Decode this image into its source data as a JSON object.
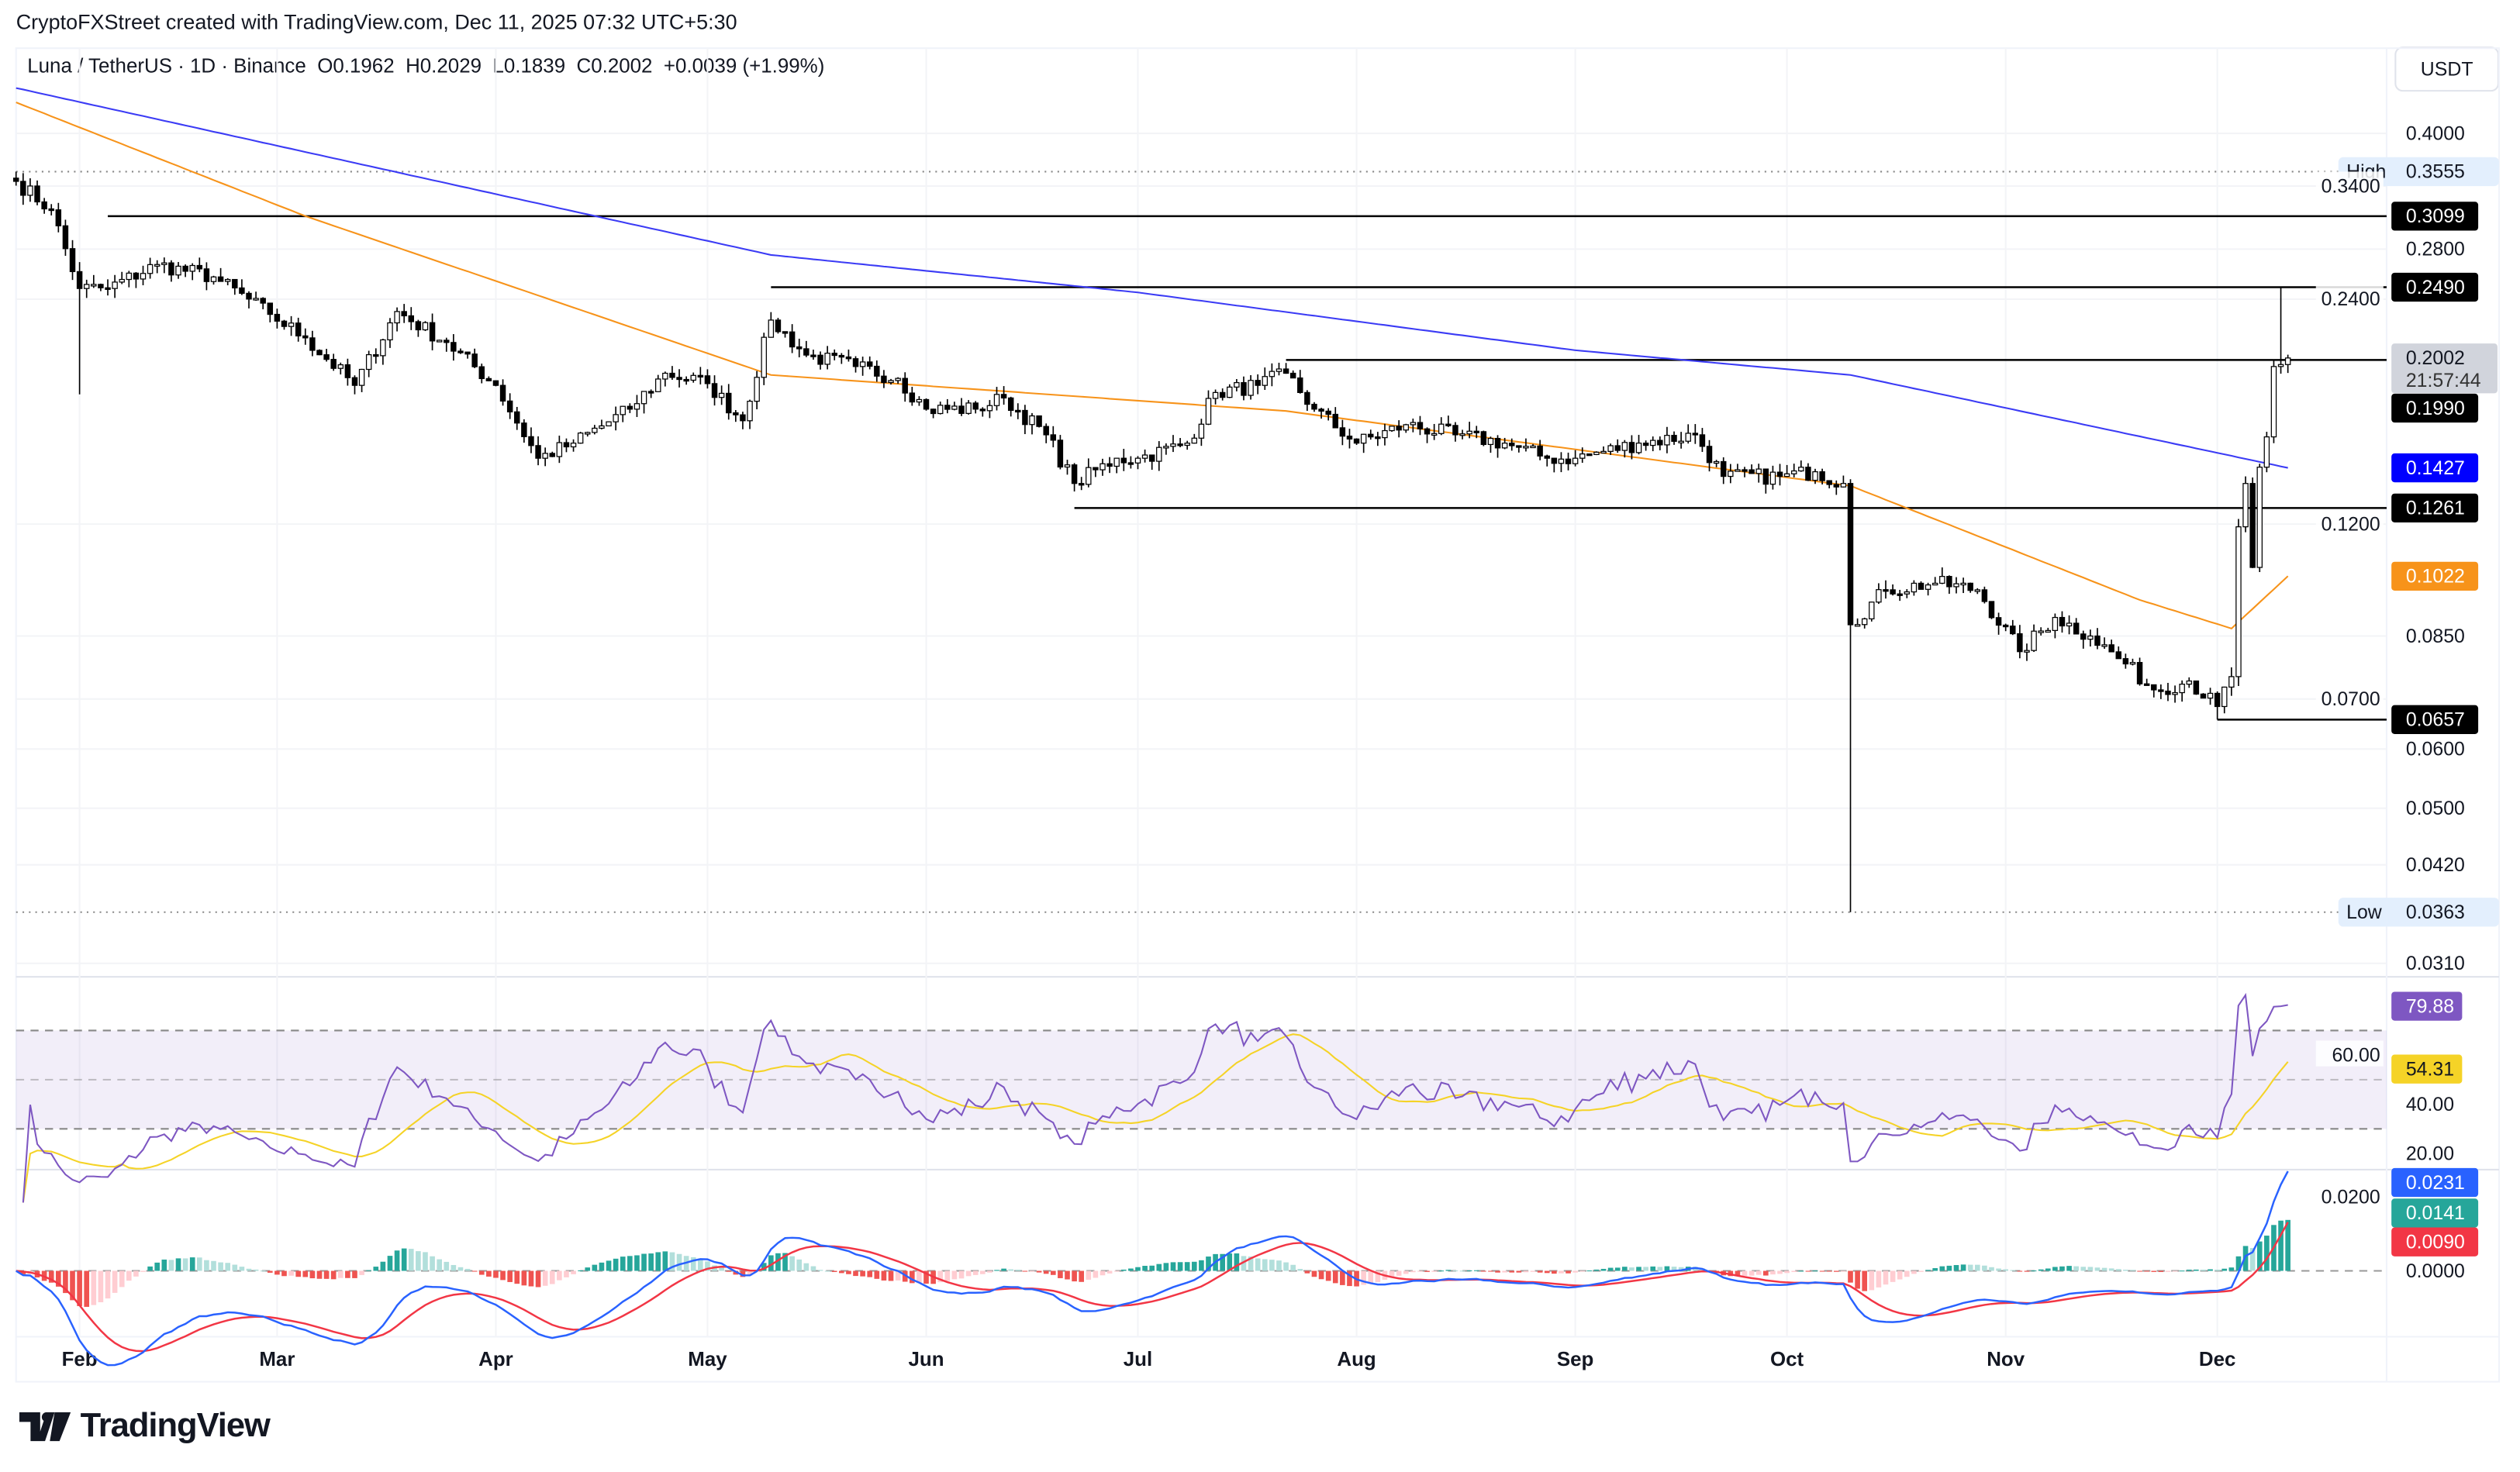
{
  "header": {
    "credit": "CryptoFXStreet created with TradingView.com, Dec 11, 2025 07:32 UTC+5:30"
  },
  "legend": {
    "symbol": "Luna / TetherUS · 1D · Binance",
    "open": "O0.1962",
    "high": "H0.2029",
    "low": "L0.1839",
    "close": "C0.2002",
    "change": "+0.0039 (+1.99%)"
  },
  "currency_button": "USDT",
  "logo_text": "TradingView",
  "colors": {
    "up": "#089981",
    "down": "#000000",
    "ma_long": "#3b3bf5",
    "ma_short": "#f7931a",
    "rsi": "#7e57c2",
    "rsi_ma": "#f5d327",
    "macd": "#2962ff",
    "signal": "#f23645",
    "hist_up": "#26a69a",
    "hist_down": "#ef5350"
  },
  "chart_data": {
    "type": "candlestick",
    "scale": "log",
    "ylim": [
      0.031,
      0.42
    ],
    "price_ticks": [
      "0.4000",
      "0.3400",
      "0.2800",
      "0.2400",
      "0.1200",
      "0.0850",
      "0.0700",
      "0.0600",
      "0.0500",
      "0.0420",
      "0.0310"
    ],
    "time_ticks": [
      "Feb",
      "Mar",
      "Apr",
      "May",
      "Jun",
      "Jul",
      "Aug",
      "Sep",
      "Oct",
      "Nov",
      "Dec"
    ],
    "closes": [
      [
        "2025-01-23",
        0.345
      ],
      [
        "2025-01-28",
        0.316
      ],
      [
        "2025-02-01",
        0.248
      ],
      [
        "2025-02-05",
        0.248
      ],
      [
        "2025-02-12",
        0.267
      ],
      [
        "2025-02-20",
        0.257
      ],
      [
        "2025-02-28",
        0.229
      ],
      [
        "2025-03-05",
        0.213
      ],
      [
        "2025-03-12",
        0.184
      ],
      [
        "2025-03-18",
        0.231
      ],
      [
        "2025-03-25",
        0.21
      ],
      [
        "2025-04-01",
        0.184
      ],
      [
        "2025-04-07",
        0.147
      ],
      [
        "2025-04-12",
        0.154
      ],
      [
        "2025-04-20",
        0.171
      ],
      [
        "2025-04-25",
        0.191
      ],
      [
        "2025-05-01",
        0.185
      ],
      [
        "2025-05-06",
        0.165
      ],
      [
        "2025-05-10",
        0.225
      ],
      [
        "2025-05-15",
        0.202
      ],
      [
        "2025-05-22",
        0.195
      ],
      [
        "2025-05-28",
        0.188
      ],
      [
        "2025-06-01",
        0.171
      ],
      [
        "2025-06-08",
        0.171
      ],
      [
        "2025-06-12",
        0.177
      ],
      [
        "2025-06-18",
        0.158
      ],
      [
        "2025-06-22",
        0.136
      ],
      [
        "2025-06-28",
        0.147
      ],
      [
        "2025-07-01",
        0.147
      ],
      [
        "2025-07-08",
        0.154
      ],
      [
        "2025-07-12",
        0.18
      ],
      [
        "2025-07-18",
        0.184
      ],
      [
        "2025-07-22",
        0.191
      ],
      [
        "2025-07-26",
        0.171
      ],
      [
        "2025-08-01",
        0.154
      ],
      [
        "2025-08-08",
        0.163
      ],
      [
        "2025-08-15",
        0.158
      ],
      [
        "2025-08-22",
        0.154
      ],
      [
        "2025-08-28",
        0.147
      ],
      [
        "2025-09-01",
        0.147
      ],
      [
        "2025-09-10",
        0.154
      ],
      [
        "2025-09-18",
        0.158
      ],
      [
        "2025-09-22",
        0.139
      ],
      [
        "2025-09-30",
        0.139
      ],
      [
        "2025-10-05",
        0.141
      ],
      [
        "2025-10-09",
        0.136
      ],
      [
        "2025-10-10",
        0.088
      ],
      [
        "2025-10-15",
        0.098
      ],
      [
        "2025-10-22",
        0.1
      ],
      [
        "2025-10-28",
        0.098
      ],
      [
        "2025-11-03",
        0.081
      ],
      [
        "2025-11-08",
        0.09
      ],
      [
        "2025-11-13",
        0.085
      ],
      [
        "2025-11-18",
        0.078
      ],
      [
        "2025-11-22",
        0.072
      ],
      [
        "2025-11-27",
        0.074
      ],
      [
        "2025-12-01",
        0.0684
      ],
      [
        "2025-12-03",
        0.075
      ],
      [
        "2025-12-04",
        0.119
      ],
      [
        "2025-12-05",
        0.136
      ],
      [
        "2025-12-06",
        0.105
      ],
      [
        "2025-12-07",
        0.143
      ],
      [
        "2025-12-08",
        0.157
      ],
      [
        "2025-12-09",
        0.195
      ],
      [
        "2025-12-10",
        0.1962
      ],
      [
        "2025-12-11",
        0.2002
      ]
    ],
    "extreme_wicks": [
      [
        "2025-01-23",
        "high",
        0.3555
      ],
      [
        "2025-02-01",
        "low",
        0.179
      ],
      [
        "2025-10-10",
        "low",
        0.0363
      ],
      [
        "2025-12-10",
        "high",
        0.249
      ],
      [
        "2025-12-01",
        "low",
        0.0657
      ]
    ],
    "ma_long": [
      [
        "2025-01-23",
        0.46
      ],
      [
        "2025-05-10",
        0.275
      ],
      [
        "2025-07-01",
        0.245
      ],
      [
        "2025-09-01",
        0.205
      ],
      [
        "2025-10-10",
        0.19
      ],
      [
        "2025-12-11",
        0.1427
      ]
    ],
    "ma_short": [
      [
        "2025-01-23",
        0.44
      ],
      [
        "2025-03-05",
        0.31
      ],
      [
        "2025-05-10",
        0.19
      ],
      [
        "2025-07-22",
        0.17
      ],
      [
        "2025-10-10",
        0.135
      ],
      [
        "2025-11-20",
        0.095
      ],
      [
        "2025-12-03",
        0.087
      ],
      [
        "2025-12-11",
        0.1022
      ]
    ],
    "levels": [
      {
        "value": "0.3099",
        "from": "2025-02-05"
      },
      {
        "value": "0.2490",
        "from": "2025-05-10"
      },
      {
        "value": "0.1990",
        "from": "2025-07-22"
      },
      {
        "value": "0.1261",
        "from": "2025-06-22"
      },
      {
        "value": "0.0657",
        "from": "2025-12-01"
      }
    ],
    "high": {
      "label": "High",
      "value": "0.3555"
    },
    "low": {
      "label": "Low",
      "value": "0.0363"
    },
    "last_price": {
      "value": "0.2002",
      "countdown": "21:57:44"
    },
    "ma_long_label": "0.1427",
    "ma_short_label": "0.1022",
    "rsi": {
      "ticks": [
        "60.00",
        "40.00",
        "20.00"
      ],
      "value": "79.88",
      "ma_value": "54.31",
      "upper": 70,
      "lower": 30
    },
    "macd": {
      "ticks": [
        "0.0200",
        "0.0000"
      ],
      "macd_value": "0.0231",
      "hist_value": "0.0141",
      "signal_value": "0.0090"
    }
  }
}
